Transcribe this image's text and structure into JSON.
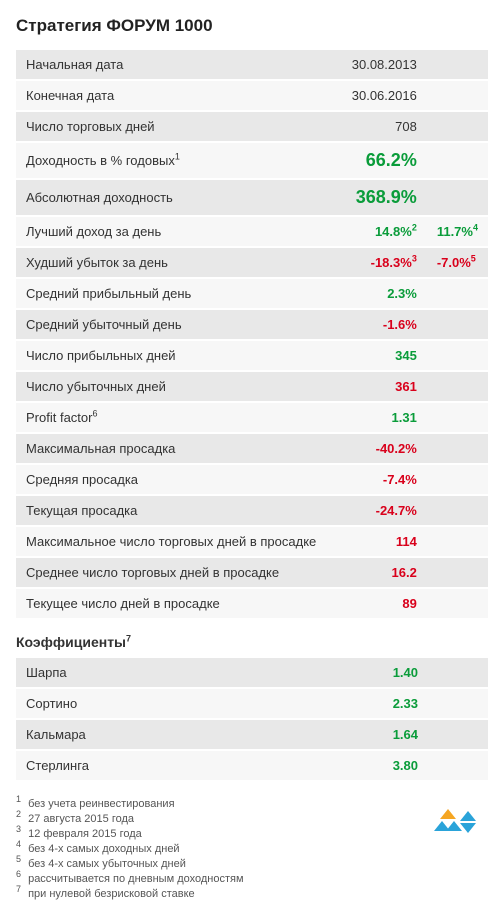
{
  "title": "Стратегия ФОРУМ 1000",
  "rows": [
    {
      "label": "Начальная дата",
      "value": "30.08.2013",
      "color": "dark"
    },
    {
      "label": "Конечная дата",
      "value": "30.06.2016",
      "color": "dark"
    },
    {
      "label": "Число торговых дней",
      "value": "708",
      "color": "dark"
    },
    {
      "label": "Доходность в % годовых",
      "label_sup": "1",
      "value": "66.2%",
      "color": "green",
      "big": true
    },
    {
      "label": "Абсолютная доходность",
      "value": "368.9%",
      "color": "green",
      "big": true
    },
    {
      "label": "Лучший доход за день",
      "value": "14.8%",
      "value_sup": "2",
      "color": "green",
      "value2": "11.7%",
      "value2_sup": "4",
      "color2": "green"
    },
    {
      "label": "Худший убыток за день",
      "value": "-18.3%",
      "value_sup": "3",
      "color": "red",
      "value2": "-7.0%",
      "value2_sup": "5",
      "color2": "red"
    },
    {
      "label": "Средний прибыльный день",
      "value": "2.3%",
      "color": "green"
    },
    {
      "label": "Средний убыточный день",
      "value": "-1.6%",
      "color": "red"
    },
    {
      "label": "Число прибыльных дней",
      "value": "345",
      "color": "green"
    },
    {
      "label": "Число убыточных дней",
      "value": "361",
      "color": "red"
    },
    {
      "label": "Profit factor",
      "label_sup": "6",
      "value": "1.31",
      "color": "green"
    },
    {
      "label": "Максимальная просадка",
      "value": "-40.2%",
      "color": "red"
    },
    {
      "label": "Средняя просадка",
      "value": "-7.4%",
      "color": "red"
    },
    {
      "label": "Текущая просадка",
      "value": "-24.7%",
      "color": "red"
    },
    {
      "label": "Максимальное число торговых дней в просадке",
      "value": "114",
      "color": "red"
    },
    {
      "label": "Среднее число торговых дней в просадке",
      "value": "16.2",
      "color": "red"
    },
    {
      "label": "Текущее число дней в просадке",
      "value": "89",
      "color": "red"
    }
  ],
  "coeff_title": "Коэффициенты",
  "coeff_title_sup": "7",
  "coeffs": [
    {
      "label": "Шарпа",
      "value": "1.40",
      "color": "green"
    },
    {
      "label": "Сортино",
      "value": "2.33",
      "color": "green"
    },
    {
      "label": "Кальмара",
      "value": "1.64",
      "color": "green"
    },
    {
      "label": "Стерлинга",
      "value": "3.80",
      "color": "green"
    }
  ],
  "footnotes": [
    {
      "num": "1",
      "text": "без учета реинвестирования"
    },
    {
      "num": "2",
      "text": "27 августа 2015 года"
    },
    {
      "num": "3",
      "text": "12 февраля 2015 года"
    },
    {
      "num": "4",
      "text": "без 4-х самых доходных дней"
    },
    {
      "num": "5",
      "text": "без 4-х самых убыточных дней"
    },
    {
      "num": "6",
      "text": "рассчитывается по дневным доходностям"
    },
    {
      "num": "7",
      "text": "при нулевой безрисковой ставке"
    }
  ],
  "colors": {
    "green": "#0a9c3a",
    "red": "#d9001b",
    "dark": "#333333",
    "row_alt": "#e8e8e8",
    "row": "#f7f7f7",
    "logo_blue": "#2aa3d9",
    "logo_yellow": "#f5a623"
  }
}
